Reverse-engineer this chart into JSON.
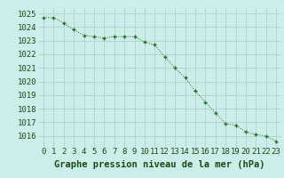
{
  "x": [
    0,
    1,
    2,
    3,
    4,
    5,
    6,
    7,
    8,
    9,
    10,
    11,
    12,
    13,
    14,
    15,
    16,
    17,
    18,
    19,
    20,
    21,
    22,
    23
  ],
  "y": [
    1024.7,
    1024.7,
    1024.3,
    1023.8,
    1023.4,
    1023.3,
    1023.2,
    1023.3,
    1023.3,
    1023.3,
    1022.9,
    1022.7,
    1021.8,
    1021.0,
    1020.3,
    1019.3,
    1018.5,
    1017.7,
    1016.9,
    1016.8,
    1016.3,
    1016.1,
    1016.0,
    1015.6
  ],
  "line_color": "#2d6a2d",
  "marker": "+",
  "bg_color": "#cceee8",
  "grid_color": "#aaccc6",
  "xlabel": "Graphe pression niveau de la mer (hPa)",
  "xlabel_color": "#1a4a1a",
  "tick_color": "#1a4a1a",
  "ylim_min": 1015.2,
  "ylim_max": 1025.4,
  "yticks": [
    1016,
    1017,
    1018,
    1019,
    1020,
    1021,
    1022,
    1023,
    1024,
    1025
  ],
  "xticks": [
    0,
    1,
    2,
    3,
    4,
    5,
    6,
    7,
    8,
    9,
    10,
    11,
    12,
    13,
    14,
    15,
    16,
    17,
    18,
    19,
    20,
    21,
    22,
    23
  ],
  "tick_fontsize": 6.5,
  "xlabel_fontsize": 7.5
}
